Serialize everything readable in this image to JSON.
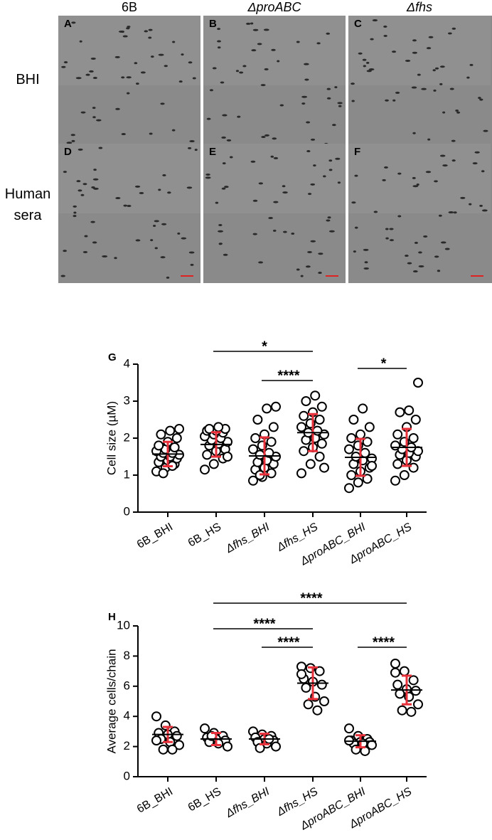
{
  "panels": {
    "column_labels": [
      "6B",
      "ΔproABC",
      "Δfhs"
    ],
    "row_labels": [
      "BHI",
      "Human sera"
    ],
    "letters": [
      "A",
      "B",
      "C",
      "D",
      "E",
      "F"
    ]
  },
  "chart_data": [
    {
      "type": "dot",
      "panel_label": "G",
      "y_label": "Cell size (µM)",
      "categories": [
        "6B_BHI",
        "6B_HS",
        "Δfhs_BHI",
        "Δfhs_HS",
        "ΔproABC_BHI",
        "ΔproABC_HS"
      ],
      "points": [
        [
          1.1,
          1.2,
          1.3,
          1.35,
          1.4,
          1.45,
          1.5,
          1.5,
          1.55,
          1.6,
          1.6,
          1.65,
          1.7,
          1.75,
          1.8,
          1.9,
          2.0,
          2.1,
          2.2,
          2.25,
          1.05,
          1.25
        ],
        [
          1.15,
          1.3,
          1.45,
          1.55,
          1.65,
          1.7,
          1.8,
          1.85,
          1.9,
          1.95,
          2.0,
          2.05,
          2.1,
          2.15,
          2.2,
          2.2,
          2.25,
          2.25,
          2.3,
          1.5
        ],
        [
          0.85,
          0.95,
          1.05,
          1.15,
          1.2,
          1.3,
          1.35,
          1.4,
          1.5,
          1.55,
          1.6,
          1.7,
          1.8,
          1.9,
          2.0,
          2.1,
          2.3,
          2.5,
          2.8,
          2.85,
          1.0
        ],
        [
          1.05,
          1.3,
          1.5,
          1.65,
          1.75,
          1.85,
          1.95,
          2.0,
          2.1,
          2.15,
          2.2,
          2.3,
          2.4,
          2.5,
          2.6,
          2.7,
          2.85,
          3.0,
          3.15,
          1.2
        ],
        [
          0.65,
          0.8,
          0.9,
          1.0,
          1.1,
          1.2,
          1.3,
          1.4,
          1.45,
          1.5,
          1.6,
          1.7,
          1.8,
          1.9,
          2.0,
          2.1,
          2.3,
          2.5,
          2.8,
          1.25
        ],
        [
          0.85,
          1.0,
          1.2,
          1.3,
          1.4,
          1.5,
          1.55,
          1.6,
          1.65,
          1.7,
          1.75,
          1.8,
          1.9,
          2.0,
          2.1,
          2.3,
          2.5,
          2.7,
          2.75,
          3.5
        ]
      ],
      "means": [
        1.57,
        1.83,
        1.52,
        2.15,
        1.48,
        1.75
      ],
      "sd": [
        0.33,
        0.33,
        0.5,
        0.5,
        0.5,
        0.5
      ],
      "ylim": [
        0,
        4
      ],
      "yticks": [
        0,
        1,
        2,
        3,
        4
      ],
      "point_color": "#000000",
      "error_color": "#e8303a",
      "significance": [
        {
          "from": "6B_HS",
          "to": "Δfhs_HS",
          "label": "*"
        },
        {
          "from": "Δfhs_BHI",
          "to": "Δfhs_HS",
          "label": "****"
        },
        {
          "from": "ΔproABC_BHI",
          "to": "ΔproABC_HS",
          "label": "*"
        }
      ]
    },
    {
      "type": "dot",
      "panel_label": "H",
      "y_label": "Average cells/chain",
      "categories": [
        "6B_BHI",
        "6B_HS",
        "Δfhs_BHI",
        "Δfhs_HS",
        "ΔproABC_BHI",
        "ΔproABC_HS"
      ],
      "points": [
        [
          4.0,
          3.4,
          3.0,
          2.9,
          2.8,
          2.7,
          2.5,
          2.3,
          2.1,
          1.8,
          1.8,
          2.4
        ],
        [
          3.2,
          2.9,
          2.7,
          2.6,
          2.5,
          2.4,
          2.3,
          2.2,
          2.0,
          2.7
        ],
        [
          3.0,
          2.8,
          2.7,
          2.6,
          2.5,
          2.4,
          2.3,
          2.2,
          2.0,
          1.9,
          2.5
        ],
        [
          7.3,
          7.2,
          7.0,
          6.5,
          6.3,
          6.1,
          5.9,
          5.3,
          5.0,
          4.8,
          4.4,
          6.8
        ],
        [
          3.2,
          2.7,
          2.5,
          2.4,
          2.3,
          2.3,
          2.2,
          2.2,
          2.1,
          1.8,
          1.7,
          2.4
        ],
        [
          7.5,
          7.0,
          6.4,
          6.1,
          5.8,
          5.7,
          5.5,
          5.3,
          4.8,
          4.4,
          4.3,
          6.9
        ]
      ],
      "means": [
        2.8,
        2.5,
        2.5,
        6.2,
        2.35,
        5.75
      ],
      "sd": [
        0.5,
        0.4,
        0.35,
        1.05,
        0.4,
        0.95
      ],
      "ylim": [
        0,
        10
      ],
      "yticks": [
        0,
        2,
        4,
        6,
        8,
        10
      ],
      "point_color": "#000000",
      "error_color": "#e8303a",
      "significance": [
        {
          "from": "6B_HS",
          "to": "ΔproABC_HS",
          "label": "****"
        },
        {
          "from": "6B_HS",
          "to": "Δfhs_HS",
          "label": "****"
        },
        {
          "from": "Δfhs_BHI",
          "to": "Δfhs_HS",
          "label": "****"
        },
        {
          "from": "ΔproABC_BHI",
          "to": "ΔproABC_HS",
          "label": "****"
        }
      ]
    }
  ]
}
